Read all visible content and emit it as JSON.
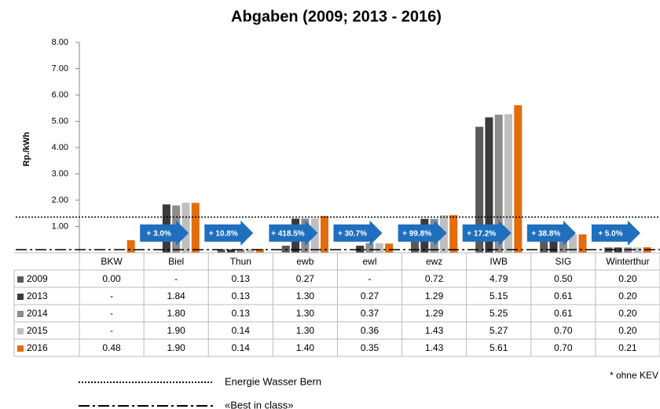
{
  "chart_data": {
    "type": "bar",
    "title": "Abgaben (2009; 2013 - 2016)",
    "y_label": "Rp./kWh",
    "categories": [
      "BKW",
      "Biel",
      "Thun",
      "ewb",
      "ewl",
      "ewz",
      "IWB",
      "SIG",
      "Winterthur"
    ],
    "series": [
      {
        "name": "2009",
        "color": "#595959",
        "values": [
          0.0,
          null,
          0.13,
          0.27,
          null,
          0.72,
          4.79,
          0.5,
          0.2
        ],
        "value_labels": [
          "0.00",
          "-",
          "0.13",
          "0.27",
          "-",
          "0.72",
          "4.79",
          "0.50",
          "0.20"
        ]
      },
      {
        "name": "2013",
        "color": "#3a3a3a",
        "values": [
          null,
          1.84,
          0.13,
          1.3,
          0.27,
          1.29,
          5.15,
          0.61,
          0.2
        ],
        "value_labels": [
          "-",
          "1.84",
          "0.13",
          "1.30",
          "0.27",
          "1.29",
          "5.15",
          "0.61",
          "0.20"
        ]
      },
      {
        "name": "2014",
        "color": "#8c8c8c",
        "values": [
          null,
          1.8,
          0.13,
          1.3,
          0.37,
          1.29,
          5.25,
          0.61,
          0.2
        ],
        "value_labels": [
          "-",
          "1.80",
          "0.13",
          "1.30",
          "0.37",
          "1.29",
          "5.25",
          "0.61",
          "0.20"
        ]
      },
      {
        "name": "2015",
        "color": "#bfbfbf",
        "values": [
          null,
          1.9,
          0.14,
          1.3,
          0.36,
          1.43,
          5.27,
          0.7,
          0.2
        ],
        "value_labels": [
          "-",
          "1.90",
          "0.14",
          "1.30",
          "0.36",
          "1.43",
          "5.27",
          "0.70",
          "0.20"
        ]
      },
      {
        "name": "2016",
        "color": "#e46c0a",
        "values": [
          0.48,
          1.9,
          0.14,
          1.4,
          0.35,
          1.43,
          5.61,
          0.7,
          0.21
        ],
        "value_labels": [
          "0.48",
          "1.90",
          "0.14",
          "1.40",
          "0.35",
          "1.43",
          "5.61",
          "0.70",
          "0.21"
        ]
      }
    ],
    "ylim": [
      0,
      8
    ],
    "yticks": [
      {
        "value": 0,
        "label": "-"
      },
      {
        "value": 1,
        "label": "1.00"
      },
      {
        "value": 2,
        "label": "2.00"
      },
      {
        "value": 3,
        "label": "3.00"
      },
      {
        "value": 4,
        "label": "4.00"
      },
      {
        "value": 5,
        "label": "5.00"
      },
      {
        "value": 6,
        "label": "6.00"
      },
      {
        "value": 7,
        "label": "7.00"
      },
      {
        "value": 8,
        "label": "8.00"
      }
    ],
    "lines": [
      {
        "name": "Energie Wasser Bern",
        "value": 1.36,
        "style": "dotted"
      },
      {
        "name": "«Best in class»",
        "value": 0.12,
        "style": "dashdot"
      }
    ],
    "annotations": [
      {
        "category": "Biel",
        "label": "+ 3.0%"
      },
      {
        "category": "Thun",
        "label": "+ 10.8%"
      },
      {
        "category": "ewb",
        "label": "+ 418.5%"
      },
      {
        "category": "ewl",
        "label": "+ 30.7%"
      },
      {
        "category": "ewz",
        "label": "+ 99.8%"
      },
      {
        "category": "IWB",
        "label": "+ 17.2%"
      },
      {
        "category": "SIG",
        "label": "+ 38.8%"
      },
      {
        "category": "Winterthur",
        "label": "+ 5.0%"
      }
    ],
    "footnote": "* ohne KEV"
  }
}
